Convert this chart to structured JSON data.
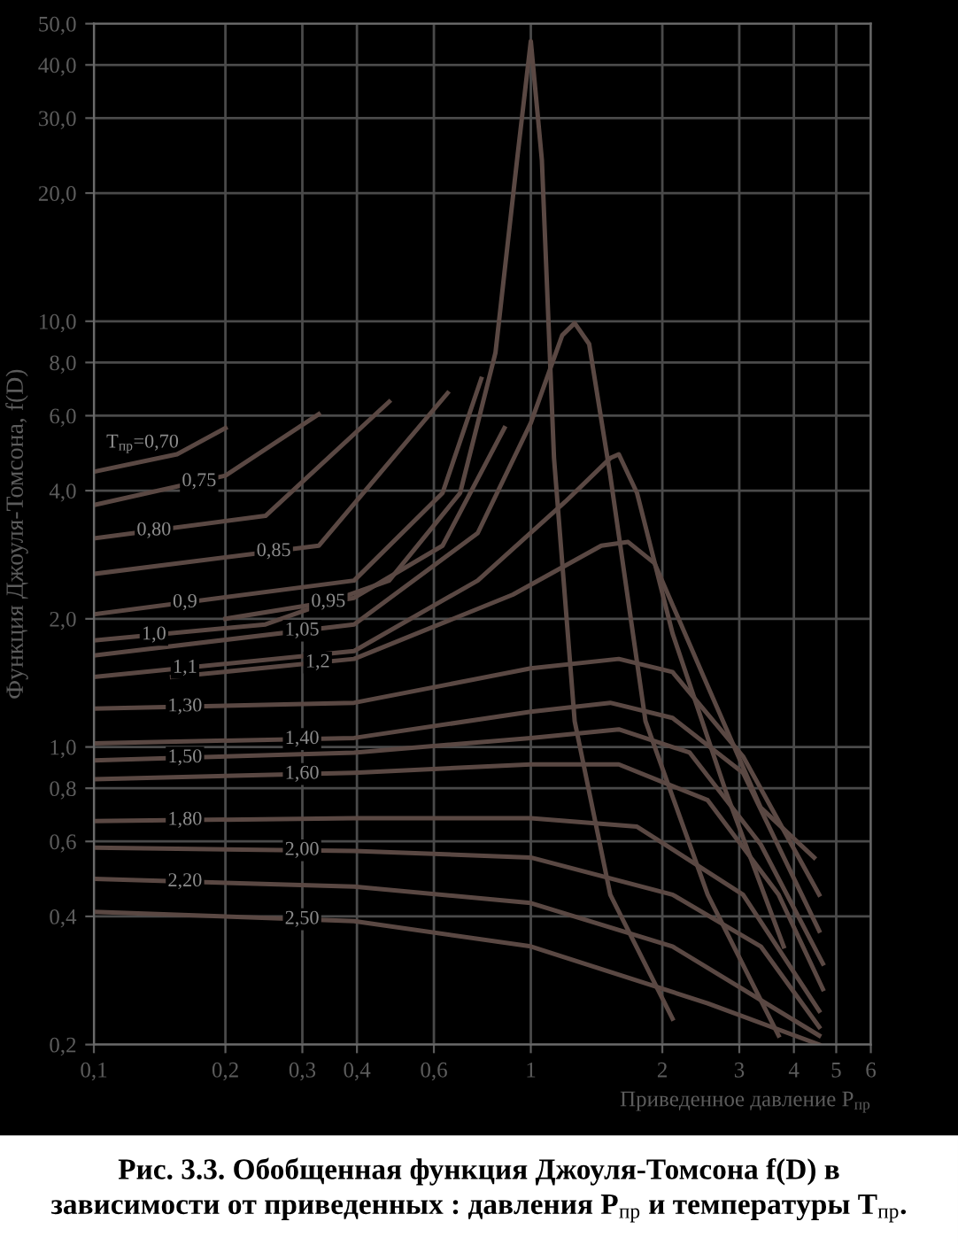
{
  "chart_data": {
    "type": "line",
    "title": "Рис. 3.3. Обобщенная функция Джоуля-Томсона f(D) в\nзависимости от приведенных : давления P$_{пр}$ и температуры T$_{пр}$.",
    "xlabel": "Приведенное давление P$_{пр}$",
    "ylabel": "Функция Джоуля-Томсона, f(D)",
    "log": "xy",
    "grid": true,
    "line_style": "solid",
    "marker": "none",
    "xlim": [
      0.1,
      6
    ],
    "ylim": [
      0.2,
      50
    ],
    "xticks": [
      {
        "value": 0.1,
        "label": "0,1"
      },
      {
        "value": 0.2,
        "label": "0,2"
      },
      {
        "value": 0.3,
        "label": "0,3"
      },
      {
        "value": 0.4,
        "label": "0,4"
      },
      {
        "value": 0.6,
        "label": "0,6"
      },
      1,
      2,
      3,
      4,
      5,
      6
    ],
    "yticks": [
      {
        "value": 0.2,
        "label": "0,2"
      },
      {
        "value": 0.4,
        "label": "0,4"
      },
      {
        "value": 0.6,
        "label": "0,6"
      },
      {
        "value": 0.8,
        "label": "0,8"
      },
      {
        "value": 1,
        "label": "1,0"
      },
      {
        "value": 2,
        "label": "2,0"
      },
      {
        "value": 4,
        "label": "4,0"
      },
      {
        "value": 6,
        "label": "6,0"
      },
      {
        "value": 8,
        "label": "8,0"
      },
      {
        "value": 10,
        "label": "10,0"
      },
      {
        "value": 20,
        "label": "20,0"
      },
      {
        "value": 30,
        "label": "30,0"
      },
      {
        "value": 40,
        "label": "40,0"
      },
      {
        "value": 50,
        "label": "50,0"
      }
    ],
    "series": [
      {
        "name": "T$_{пр}$=0,70",
        "color": "#5a4843",
        "x": [
          0.1,
          0.155,
          0.2
        ],
        "values": [
          4.43,
          4.87,
          5.61
        ]
      },
      {
        "name": "0,75",
        "color": "#5a4843",
        "x": [
          0.1,
          0.2,
          0.327
        ],
        "values": [
          3.7,
          4.34,
          6.05
        ]
      },
      {
        "name": "0,80",
        "color": "#5a4843",
        "x": [
          0.1,
          0.247,
          0.474
        ],
        "values": [
          3.09,
          3.49,
          6.47
        ]
      },
      {
        "name": "0,85",
        "color": "#5a4843",
        "x": [
          0.1,
          0.327,
          0.645
        ],
        "values": [
          2.55,
          2.97,
          6.78
        ]
      },
      {
        "name": "0,9",
        "color": "#5a4843",
        "x": [
          0.1,
          0.394,
          0.628,
          0.77
        ],
        "values": [
          2.05,
          2.46,
          3.95,
          7.32
        ]
      },
      {
        "name": "0,95",
        "color": "#5a4843",
        "x": [
          0.2,
          0.394,
          0.628,
          0.87
        ],
        "values": [
          2.0,
          2.24,
          2.97,
          5.61
        ]
      },
      {
        "name": "1,0",
        "color": "#5a4843",
        "x": [
          0.1,
          0.247,
          0.474,
          0.689,
          0.83,
          0.93,
          1.0,
          1.06,
          1.13,
          1.26,
          1.52,
          2.11
        ],
        "values": [
          1.78,
          1.94,
          2.46,
          3.95,
          8.43,
          23.9,
          45.5,
          23.9,
          4.77,
          1.15,
          0.45,
          0.23
        ]
      },
      {
        "name": "1,05",
        "color": "#5a4843",
        "x": [
          0.1,
          0.394,
          0.756,
          1.0,
          1.18,
          1.26,
          1.36,
          1.52,
          1.83,
          2.54,
          3.69
        ],
        "values": [
          1.64,
          1.94,
          3.18,
          5.77,
          9.27,
          9.9,
          8.84,
          4.34,
          1.15,
          0.45,
          0.21
        ]
      },
      {
        "name": "1,1",
        "color": "#5a4843",
        "x": [
          0.1,
          0.394,
          0.756,
          1.2,
          1.52,
          1.59,
          1.75,
          2.11,
          2.79,
          3.79
        ],
        "values": [
          1.46,
          1.68,
          2.46,
          3.77,
          4.77,
          4.87,
          3.95,
          1.85,
          0.79,
          0.34
        ]
      },
      {
        "name": "1,2",
        "color": "#5a4843",
        "x": [
          0.151,
          0.394,
          0.91,
          1.45,
          1.67,
          1.92,
          2.54,
          3.36,
          4.45
        ],
        "values": [
          1.46,
          1.61,
          2.28,
          2.97,
          3.03,
          2.7,
          1.39,
          0.72,
          0.55
        ]
      },
      {
        "name": "1,30",
        "color": "#5a4843",
        "x": [
          0.1,
          0.394,
          1.0,
          1.59,
          2.11,
          3.06,
          4.57
        ],
        "values": [
          1.23,
          1.27,
          1.53,
          1.61,
          1.5,
          0.95,
          0.45
        ]
      },
      {
        "name": "1,40",
        "color": "#5a4843",
        "x": [
          0.1,
          0.394,
          1.0,
          1.52,
          2.11,
          3.06,
          4.57
        ],
        "values": [
          1.02,
          1.05,
          1.21,
          1.27,
          1.17,
          0.87,
          0.37
        ]
      },
      {
        "name": "1,50",
        "color": "#5a4843",
        "x": [
          0.1,
          0.394,
          1.0,
          1.59,
          2.31,
          3.36,
          4.66
        ],
        "values": [
          0.93,
          0.97,
          1.05,
          1.1,
          0.97,
          0.59,
          0.31
        ]
      },
      {
        "name": "1,60",
        "color": "#5a4843",
        "x": [
          0.1,
          0.394,
          1.0,
          1.59,
          2.54,
          3.69,
          4.66
        ],
        "values": [
          0.84,
          0.87,
          0.91,
          0.91,
          0.75,
          0.45,
          0.27
        ]
      },
      {
        "name": "1,80",
        "color": "#5a4843",
        "x": [
          0.1,
          0.394,
          1.0,
          1.75,
          3.06,
          4.57
        ],
        "values": [
          0.67,
          0.68,
          0.68,
          0.65,
          0.45,
          0.24
        ]
      },
      {
        "name": "2,00",
        "color": "#5a4843",
        "x": [
          0.1,
          0.394,
          1.0,
          2.11,
          3.36,
          4.57
        ],
        "values": [
          0.58,
          0.57,
          0.55,
          0.45,
          0.34,
          0.22
        ]
      },
      {
        "name": "2,20",
        "color": "#5a4843",
        "x": [
          0.1,
          0.394,
          1.0,
          2.11,
          4.57
        ],
        "values": [
          0.49,
          0.47,
          0.43,
          0.34,
          0.21
        ]
      },
      {
        "name": "2,50",
        "color": "#5a4843",
        "x": [
          0.1,
          0.394,
          1.0,
          2.54,
          4.57
        ],
        "values": [
          0.41,
          0.39,
          0.34,
          0.25,
          0.2
        ]
      }
    ]
  }
}
